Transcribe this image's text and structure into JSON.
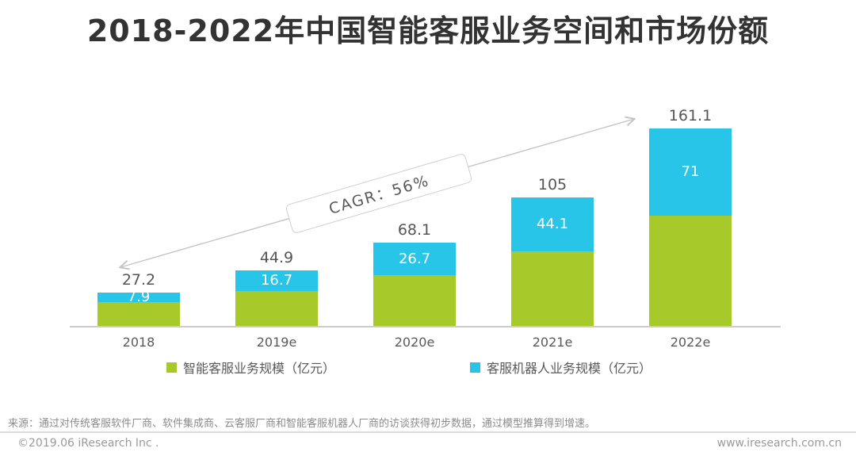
{
  "title": "2018-2022年中国智能客服业务空间和市场份额",
  "chart_data": {
    "type": "bar",
    "stacked": true,
    "title": "2018-2022年中国智能客服业务空间和市场份额",
    "categories": [
      "2018",
      "2019e",
      "2020e",
      "2021e",
      "2022e"
    ],
    "series": [
      {
        "name": "智能客服业务规模（亿元）",
        "color": "#a8c92a",
        "values": [
          19.3,
          28.2,
          41.4,
          60.9,
          90.1
        ]
      },
      {
        "name": "客服机器人业务规模（亿元）",
        "color": "#29c5e8",
        "values": [
          7.9,
          16.7,
          26.7,
          44.1,
          71
        ]
      }
    ],
    "totals": [
      27.2,
      44.9,
      68.1,
      105,
      161.1
    ],
    "total_labels": [
      "27.2",
      "44.9",
      "68.1",
      "105",
      "161.1"
    ],
    "robot_segment_labels": [
      "7.9",
      "16.7",
      "26.7",
      "44.1",
      "71"
    ],
    "annotation": "CAGR：56%",
    "unit": "亿元",
    "xlabel": "",
    "ylabel": "",
    "ylim": [
      0,
      180
    ],
    "grid": false,
    "legend_position": "bottom"
  },
  "legend": [
    {
      "label": "智能客服业务规模（亿元）",
      "color": "#a8c92a"
    },
    {
      "label": "客服机器人业务规模（亿元）",
      "color": "#29c5e8"
    }
  ],
  "colors": {
    "green": "#a8c92a",
    "blue": "#29c5e8",
    "axis": "#cccccc",
    "arrow": "#c4c4c4",
    "label_gray": "#555555"
  },
  "source_note": "来源：通过对传统客服软件厂商、软件集成商、云客服厂商和智能客服机器人厂商的访谈获得初步数据，通过模型推算得到增速。",
  "footer": {
    "copyright": "©2019.06 iResearch Inc .",
    "website": "www.iresearch.com.cn"
  }
}
